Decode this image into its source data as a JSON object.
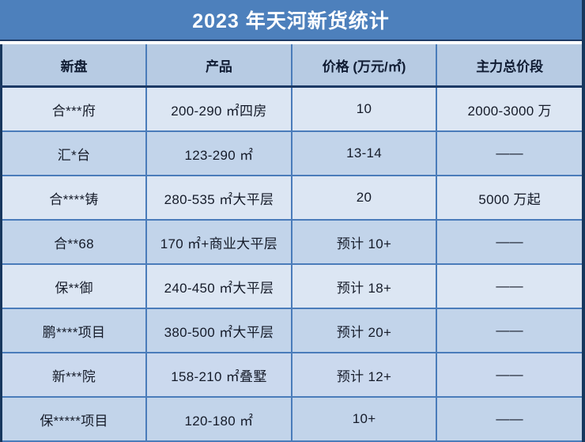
{
  "chart_data": {
    "type": "table",
    "title": "2023 年天河新货统计",
    "columns": [
      "新盘",
      "产品",
      "价格 (万元/㎡)",
      "主力总价段"
    ],
    "rows": [
      [
        "合***府",
        "200-290 ㎡四房",
        "10",
        "2000-3000 万"
      ],
      [
        "汇*台",
        "123-290 ㎡",
        "13-14",
        "——"
      ],
      [
        "合****铸",
        "280-535 ㎡大平层",
        "20",
        "5000 万起"
      ],
      [
        "合**68",
        "170 ㎡+商业大平层",
        "预计 10+",
        "——"
      ],
      [
        "保**御",
        "240-450 ㎡大平层",
        "预计 18+",
        "——"
      ],
      [
        "鹏****项目",
        "380-500 ㎡大平层",
        "预计 20+",
        "——"
      ],
      [
        "新***院",
        "158-210 ㎡叠墅",
        "预计 12+",
        "——"
      ],
      [
        "保*****项目",
        "120-180 ㎡",
        "10+",
        "——"
      ]
    ]
  },
  "colors": {
    "title_bg": "#4d80bc",
    "title_text": "#ffffff",
    "header_bg": "#b7cbe3",
    "row_light": "#dce6f3",
    "row_medium": "#c2d4ea",
    "outer_border_navy": "#17375e",
    "grid_blue": "#4a7cba",
    "cell_text": "#151b29"
  }
}
